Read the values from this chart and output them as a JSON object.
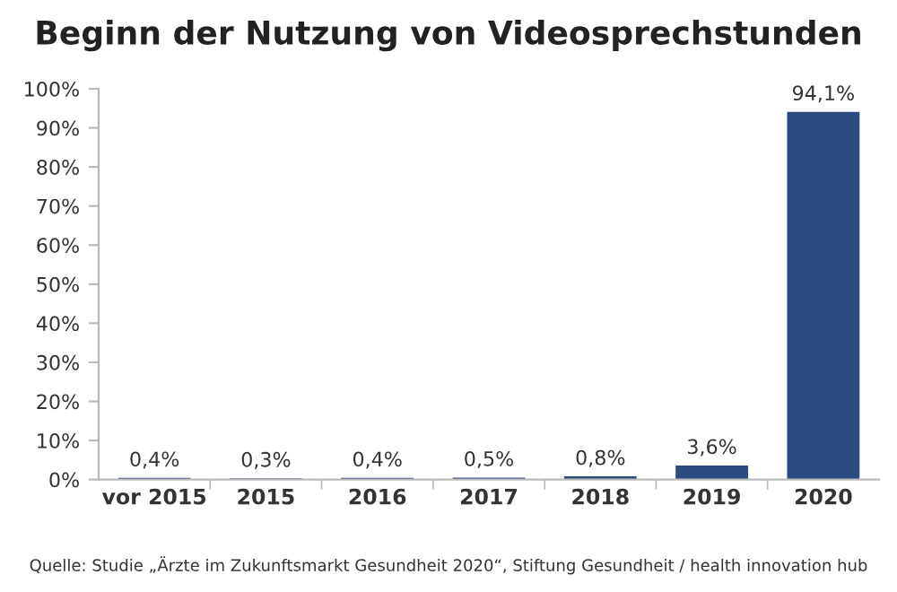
{
  "chart_data": {
    "type": "bar",
    "title": "Beginn der Nutzung von Videosprechstunden",
    "categories": [
      "vor 2015",
      "2015",
      "2016",
      "2017",
      "2018",
      "2019",
      "2020"
    ],
    "values": [
      0.4,
      0.3,
      0.4,
      0.5,
      0.8,
      3.6,
      94.1
    ],
    "value_labels": [
      "0,4%",
      "0,3%",
      "0,4%",
      "0,5%",
      "0,8%",
      "3,6%",
      "94,1%"
    ],
    "color": "#2b4a80",
    "ylim": [
      0,
      100
    ],
    "yticks": [
      {
        "value": 0,
        "label": "0%"
      },
      {
        "value": 10,
        "label": "10%"
      },
      {
        "value": 20,
        "label": "20%"
      },
      {
        "value": 30,
        "label": "30%"
      },
      {
        "value": 40,
        "label": "40%"
      },
      {
        "value": 50,
        "label": "50%"
      },
      {
        "value": 60,
        "label": "60%"
      },
      {
        "value": 70,
        "label": "70%"
      },
      {
        "value": 80,
        "label": "80%"
      },
      {
        "value": 90,
        "label": "90%"
      },
      {
        "value": 100,
        "label": "100%"
      }
    ],
    "grid": false,
    "annotations": [
      "Quelle: Studie „Ärzte im Zukunftsmarkt Gesundheit 2020“, Stiftung Gesundheit / health innovation hub"
    ]
  }
}
